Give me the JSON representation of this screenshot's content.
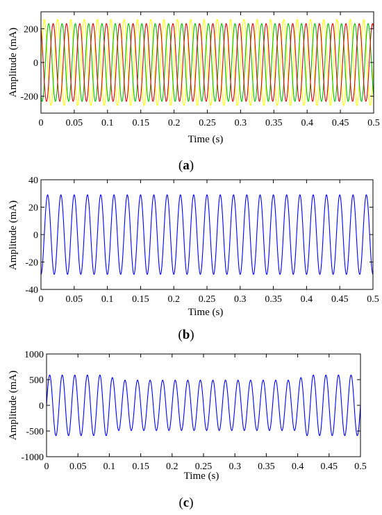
{
  "chart_data": [
    {
      "type": "line",
      "caption": "(a)",
      "caption_letter": "a",
      "xlabel": "Time (s)",
      "ylabel": "Amplitude (mA)",
      "xlim": [
        0,
        0.5
      ],
      "ylim": [
        -300,
        300
      ],
      "xticks": [
        "0",
        "0.05",
        "0.1",
        "0.15",
        "0.2",
        "0.25",
        "0.3",
        "0.35",
        "0.4",
        "0.45",
        "0.5"
      ],
      "yticks": [
        "200",
        "0",
        "-200"
      ],
      "frequency_hz": 50,
      "series": [
        {
          "color": "#ffff00",
          "amplitude": 255,
          "phase_deg": 0
        },
        {
          "color": "#00c000",
          "amplitude": 230,
          "phase_deg": -120
        },
        {
          "color": "#e00000",
          "amplitude": 230,
          "phase_deg": 120
        }
      ]
    },
    {
      "type": "line",
      "caption": "(b)",
      "caption_letter": "b",
      "xlabel": "Time (s)",
      "ylabel": "Amplitude (mA)",
      "xlim": [
        0,
        0.5
      ],
      "ylim": [
        -40,
        40
      ],
      "xticks": [
        "0",
        "0.05",
        "0.1",
        "0.15",
        "0.2",
        "0.25",
        "0.3",
        "0.35",
        "0.4",
        "0.45",
        "0.5"
      ],
      "yticks": [
        "40",
        "20",
        "0",
        "-20",
        "-40"
      ],
      "frequency_hz": 50,
      "series": [
        {
          "color": "#0000ff",
          "amplitude": 29,
          "phase_deg": -90
        }
      ]
    },
    {
      "type": "line",
      "caption": "(c)",
      "caption_letter": "c",
      "xlabel": "Time (s)",
      "ylabel": "Amplitude (mA)",
      "xlim": [
        0,
        0.5
      ],
      "ylim": [
        -1000,
        1000
      ],
      "xticks": [
        "0",
        "0.05",
        "0.1",
        "0.15",
        "0.2",
        "0.25",
        "0.3",
        "0.35",
        "0.4",
        "0.45",
        "0.5"
      ],
      "yticks": [
        "1000",
        "500",
        "0",
        "-500",
        "-1000"
      ],
      "frequency_hz": 50,
      "series": [
        {
          "color": "#0000ff",
          "phase_deg": 0,
          "amplitude_envelope": [
            [
              0,
              590
            ],
            [
              0.1,
              590
            ],
            [
              0.11,
              490
            ],
            [
              0.4,
              490
            ],
            [
              0.41,
              590
            ],
            [
              0.5,
              590
            ]
          ]
        }
      ]
    }
  ]
}
